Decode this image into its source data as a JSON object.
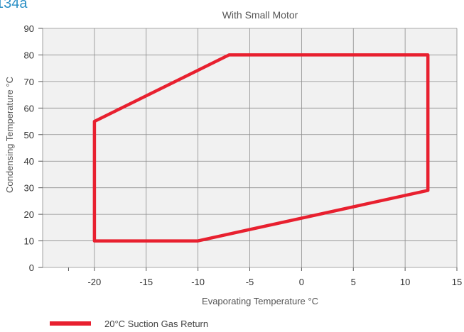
{
  "partial_title": "134a",
  "chart_data": {
    "type": "line",
    "title": "With Small Motor",
    "xlabel": "Evaporating Temperature °C",
    "ylabel": "Condensing Temperature °C",
    "xlim": [
      -25,
      15
    ],
    "ylim": [
      0,
      90
    ],
    "xticks": [
      -20,
      -15,
      -10,
      -5,
      0,
      5,
      10,
      15
    ],
    "yticks": [
      0,
      10,
      20,
      30,
      40,
      50,
      60,
      70,
      80,
      90
    ],
    "grid": true,
    "series": [
      {
        "name": "20°C Suction Gas Return",
        "color": "#e8202f",
        "closed": true,
        "x": [
          -20,
          -7,
          12.2,
          12.2,
          -10,
          -20,
          -20
        ],
        "y": [
          55,
          80,
          80,
          29,
          10,
          10,
          55
        ]
      }
    ],
    "legend_position": "bottom-left"
  }
}
